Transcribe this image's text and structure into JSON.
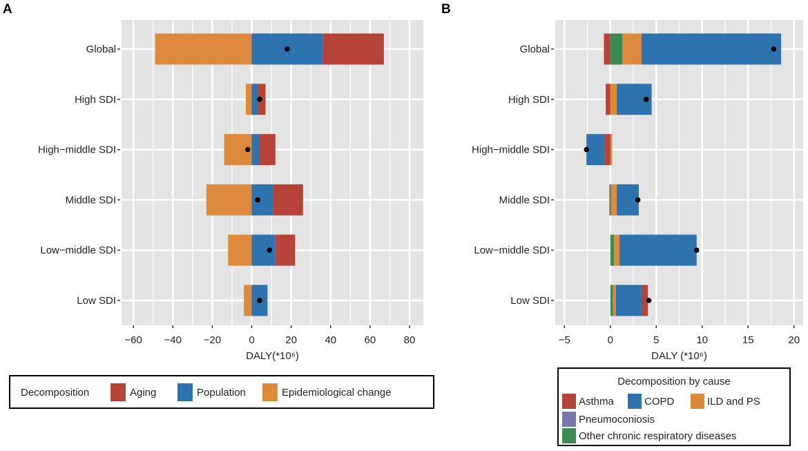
{
  "colors": {
    "aging": "#B5433A",
    "population": "#2E72AE",
    "epi": "#DE8A3C",
    "asthma": "#B5433A",
    "copd": "#2E72AE",
    "ild": "#DE8A3C",
    "pneumo": "#7B76AB",
    "other": "#3E8A55",
    "panel_bg": "#E4E4E4",
    "grid": "#FFFFFF"
  },
  "chart_data": [
    {
      "panel": "A",
      "type": "bar",
      "orientation": "horizontal",
      "stacked": "diverging",
      "categories": [
        "Global",
        "High SDI",
        "High−middle SDI",
        "Middle SDI",
        "Low−middle SDI",
        "Low SDI"
      ],
      "xlabel": "DALY(*10⁶)",
      "xlim": [
        -66,
        87
      ],
      "xticks": [
        -60,
        -40,
        -20,
        0,
        20,
        40,
        60,
        80
      ],
      "xtick_labels": [
        "−60",
        "−40",
        "−20",
        "0",
        "20",
        "40",
        "60",
        "80"
      ],
      "series": [
        {
          "name": "Population",
          "key": "population",
          "values": [
            36,
            3,
            4,
            11,
            12,
            8
          ]
        },
        {
          "name": "Aging",
          "key": "aging",
          "values": [
            31,
            4,
            8,
            15,
            10,
            0
          ]
        },
        {
          "name": "Epidemiological change",
          "key": "epi",
          "values": [
            -49,
            -3,
            -14,
            -23,
            -12,
            -4
          ]
        }
      ],
      "totals": [
        18,
        4,
        -2,
        3,
        9,
        4
      ],
      "legend": {
        "title": "Decomposition",
        "items": [
          "Aging",
          "Population",
          "Epidemiological change"
        ],
        "keys": [
          "aging",
          "population",
          "epi"
        ],
        "position": "bottom"
      }
    },
    {
      "panel": "B",
      "type": "bar",
      "orientation": "horizontal",
      "stacked": "diverging",
      "categories": [
        "Global",
        "High SDI",
        "High−middle SDI",
        "Middle SDI",
        "Low−middle SDI",
        "Low SDI"
      ],
      "xlabel": "DALY (*10⁶)",
      "xlim": [
        -6,
        21
      ],
      "xticks": [
        -5,
        0,
        5,
        10,
        15,
        20
      ],
      "xtick_labels": [
        "−5",
        "0",
        "5",
        "10",
        "15",
        "20"
      ],
      "series": [
        {
          "name": "Other chronic respiratory diseases",
          "key": "other",
          "values": [
            1.3,
            0,
            0,
            0.1,
            0.4,
            0.3
          ]
        },
        {
          "name": "ILD and PS",
          "key": "ild",
          "values": [
            2.1,
            0.7,
            0.2,
            0.6,
            0.6,
            0.3
          ]
        },
        {
          "name": "COPD",
          "key": "copd",
          "values": [
            15.2,
            3.8,
            0,
            2.4,
            8.4,
            2.8
          ]
        },
        {
          "name": "Asthma",
          "key": "asthma",
          "values": [
            -0.7,
            -0.5,
            -0.6,
            -0.1,
            0,
            0.7
          ]
        },
        {
          "name": "COPD",
          "key": "copd",
          "values": [
            0,
            0,
            -2.0,
            0,
            0,
            0
          ],
          "hidden_legend": true
        },
        {
          "name": "Pneumoconiosis",
          "key": "pneumo",
          "values": [
            0,
            0,
            0,
            0,
            0,
            0
          ]
        }
      ],
      "totals": [
        17.8,
        3.9,
        -2.6,
        3.0,
        9.4,
        4.2
      ],
      "legend": {
        "title": "Decomposition by cause",
        "items": [
          "Asthma",
          "COPD",
          "ILD and PS",
          "Pneumoconiosis",
          "Other chronic respiratory diseases"
        ],
        "keys": [
          "asthma",
          "copd",
          "ild",
          "pneumo",
          "other"
        ],
        "position": "bottom"
      }
    }
  ]
}
